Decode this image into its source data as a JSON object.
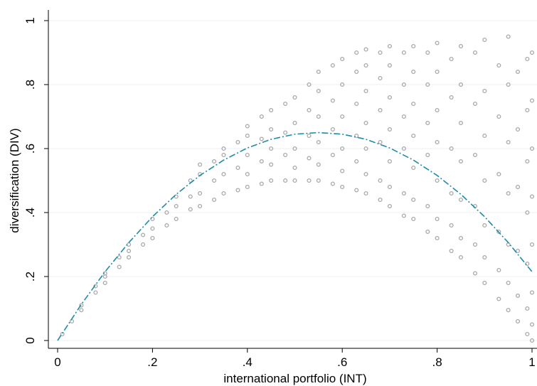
{
  "chart_data": {
    "type": "scatter",
    "xlabel": "international portfolio (INT)",
    "ylabel": "diversification (DIV)",
    "xlim": [
      0,
      1
    ],
    "ylim": [
      0,
      1
    ],
    "xticks": [
      0,
      {
        "value": 0.2,
        "label": ".2"
      },
      {
        "value": 0.4,
        "label": ".4"
      },
      {
        "value": 0.6,
        "label": ".6"
      },
      {
        "value": 0.8,
        "label": ".8"
      },
      1
    ],
    "yticks": [
      0,
      {
        "value": 0.2,
        "label": ".2"
      },
      {
        "value": 0.4,
        "label": ".4"
      },
      {
        "value": 0.6,
        "label": ".6"
      },
      {
        "value": 0.8,
        "label": ".8"
      },
      1
    ],
    "grid": true,
    "series": [
      {
        "type": "scatter",
        "color": "#a8a8a8",
        "x": [
          0.01,
          0.03,
          0.05,
          0.05,
          0.08,
          0.08,
          0.1,
          0.1,
          0.1,
          0.13,
          0.13,
          0.15,
          0.15,
          0.15,
          0.18,
          0.18,
          0.2,
          0.2,
          0.2,
          0.23,
          0.23,
          0.25,
          0.25,
          0.25,
          0.28,
          0.28,
          0.28,
          0.3,
          0.3,
          0.3,
          0.3,
          0.33,
          0.33,
          0.33,
          0.35,
          0.35,
          0.35,
          0.35,
          0.38,
          0.38,
          0.38,
          0.4,
          0.4,
          0.4,
          0.4,
          0.4,
          0.43,
          0.43,
          0.43,
          0.43,
          0.45,
          0.45,
          0.45,
          0.45,
          0.45,
          0.48,
          0.48,
          0.48,
          0.48,
          0.5,
          0.5,
          0.5,
          0.5,
          0.5,
          0.53,
          0.53,
          0.53,
          0.53,
          0.53,
          0.55,
          0.55,
          0.55,
          0.55,
          0.55,
          0.55,
          0.58,
          0.58,
          0.58,
          0.58,
          0.58,
          0.6,
          0.6,
          0.6,
          0.6,
          0.6,
          0.6,
          0.63,
          0.63,
          0.63,
          0.63,
          0.63,
          0.63,
          0.65,
          0.65,
          0.65,
          0.65,
          0.65,
          0.65,
          0.65,
          0.68,
          0.68,
          0.68,
          0.68,
          0.68,
          0.68,
          0.7,
          0.7,
          0.7,
          0.7,
          0.7,
          0.7,
          0.7,
          0.73,
          0.73,
          0.73,
          0.73,
          0.73,
          0.73,
          0.75,
          0.75,
          0.75,
          0.75,
          0.75,
          0.75,
          0.75,
          0.78,
          0.78,
          0.78,
          0.78,
          0.78,
          0.78,
          0.8,
          0.8,
          0.8,
          0.8,
          0.8,
          0.8,
          0.8,
          0.83,
          0.83,
          0.83,
          0.83,
          0.83,
          0.83,
          0.85,
          0.85,
          0.85,
          0.85,
          0.85,
          0.85,
          0.85,
          0.88,
          0.88,
          0.88,
          0.88,
          0.88,
          0.88,
          0.9,
          0.9,
          0.9,
          0.9,
          0.9,
          0.9,
          0.9,
          0.93,
          0.93,
          0.93,
          0.93,
          0.93,
          0.93,
          0.95,
          0.95,
          0.95,
          0.95,
          0.95,
          0.95,
          0.95,
          0.97,
          0.97,
          0.97,
          0.97,
          0.97,
          0.97,
          0.99,
          0.99,
          0.99,
          0.99,
          0.99,
          0.99,
          0.99,
          1,
          1,
          1,
          1,
          1,
          1,
          1,
          1
        ],
        "values": [
          0.02,
          0.06,
          0.095,
          0.11,
          0.15,
          0.17,
          0.18,
          0.2,
          0.21,
          0.23,
          0.26,
          0.26,
          0.28,
          0.3,
          0.3,
          0.33,
          0.32,
          0.35,
          0.38,
          0.36,
          0.4,
          0.38,
          0.42,
          0.45,
          0.41,
          0.45,
          0.5,
          0.42,
          0.46,
          0.52,
          0.55,
          0.44,
          0.5,
          0.56,
          0.46,
          0.52,
          0.58,
          0.6,
          0.47,
          0.54,
          0.62,
          0.48,
          0.52,
          0.58,
          0.64,
          0.67,
          0.49,
          0.56,
          0.63,
          0.7,
          0.5,
          0.55,
          0.6,
          0.66,
          0.72,
          0.5,
          0.58,
          0.65,
          0.74,
          0.5,
          0.54,
          0.6,
          0.68,
          0.76,
          0.5,
          0.57,
          0.64,
          0.72,
          0.8,
          0.5,
          0.55,
          0.62,
          0.7,
          0.78,
          0.84,
          0.49,
          0.58,
          0.66,
          0.75,
          0.86,
          0.48,
          0.53,
          0.6,
          0.7,
          0.8,
          0.88,
          0.47,
          0.56,
          0.64,
          0.74,
          0.84,
          0.9,
          0.46,
          0.52,
          0.6,
          0.68,
          0.78,
          0.86,
          0.91,
          0.44,
          0.5,
          0.62,
          0.72,
          0.82,
          0.9,
          0.42,
          0.48,
          0.56,
          0.66,
          0.76,
          0.86,
          0.92,
          0.39,
          0.46,
          0.6,
          0.7,
          0.8,
          0.9,
          0.38,
          0.44,
          0.54,
          0.64,
          0.74,
          0.84,
          0.92,
          0.34,
          0.42,
          0.58,
          0.68,
          0.8,
          0.9,
          0.32,
          0.38,
          0.5,
          0.62,
          0.72,
          0.84,
          0.93,
          0.28,
          0.36,
          0.46,
          0.6,
          0.76,
          0.88,
          0.26,
          0.32,
          0.44,
          0.56,
          0.68,
          0.8,
          0.92,
          0.21,
          0.3,
          0.42,
          0.58,
          0.74,
          0.9,
          0.18,
          0.26,
          0.36,
          0.5,
          0.64,
          0.78,
          0.94,
          0.13,
          0.22,
          0.34,
          0.52,
          0.7,
          0.86,
          0.095,
          0.18,
          0.3,
          0.46,
          0.62,
          0.8,
          0.95,
          0.06,
          0.14,
          0.28,
          0.48,
          0.66,
          0.84,
          0.02,
          0.1,
          0.24,
          0.4,
          0.56,
          0.72,
          0.88,
          0,
          0.05,
          0.15,
          0.3,
          0.45,
          0.6,
          0.75,
          0.9
        ]
      },
      {
        "type": "line",
        "color": "#1f8ba8",
        "x": [
          0,
          0.05,
          0.1,
          0.15,
          0.2,
          0.25,
          0.3,
          0.35,
          0.4,
          0.45,
          0.5,
          0.55,
          0.6,
          0.65,
          0.7,
          0.75,
          0.8,
          0.85,
          0.9,
          0.95,
          1
        ],
        "values": [
          0,
          0.113,
          0.215,
          0.306,
          0.387,
          0.457,
          0.516,
          0.564,
          0.602,
          0.629,
          0.645,
          0.65,
          0.645,
          0.629,
          0.602,
          0.564,
          0.516,
          0.457,
          0.387,
          0.306,
          0.215
        ]
      }
    ]
  }
}
